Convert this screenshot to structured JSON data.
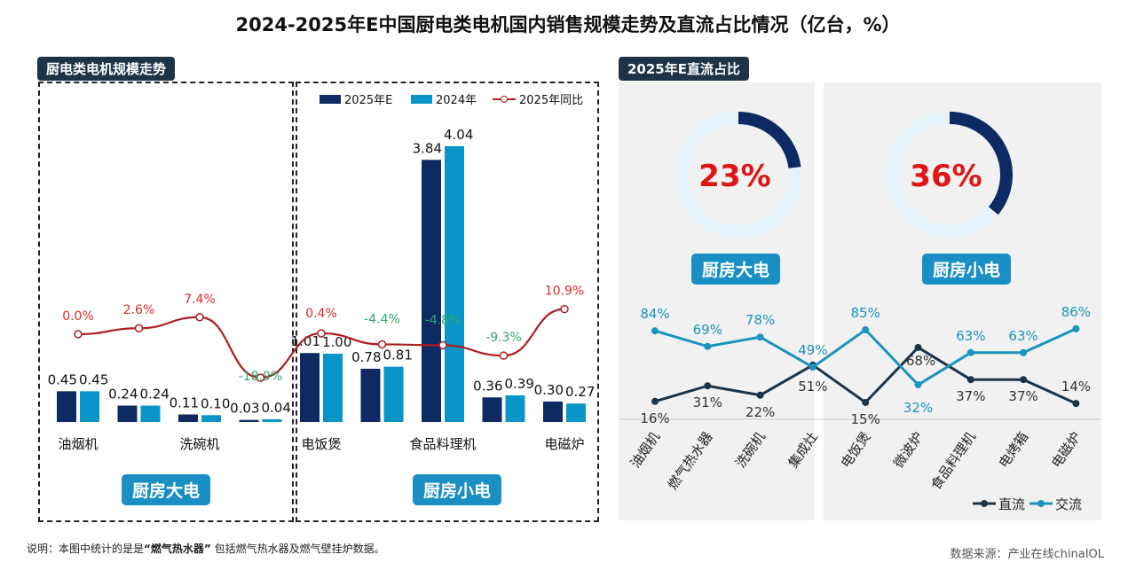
{
  "title": "2024-2025年E中国厨电类电机国内销售规模走势及直流占比情况（亿台，%）",
  "left_tag": "厨电类电机规模走势",
  "right_tag": "2025年E直流占比",
  "group_labels": [
    "厨房大电",
    "厨房小电"
  ],
  "note": {
    "prefix": "说明：本图中统计的是是",
    "bold": "“燃气热水器”",
    "suffix": " 包括燃气热水器及燃气壁挂炉数据。"
  },
  "source": "数据来源：产业在线chinaIOL",
  "colors": {
    "y2025": "#0d2a63",
    "y2024": "#0a95c8",
    "yoy": "#b01c1c",
    "dc": "#1d3448",
    "ac": "#1a94bd",
    "neg": "#2ea86b",
    "pos": "#e02828"
  },
  "chart_data": [
    {
      "type": "bar",
      "title": "厨电类电机规模走势",
      "categories": [
        "油烟机",
        "燃气热水器",
        "洗碗机",
        "集成灶",
        "电饭煲",
        "微波炉",
        "食品料理机",
        "电烤箱",
        "电磁炉"
      ],
      "visible_tick_labels": [
        "油烟机",
        "洗碗机",
        "电饭煲",
        "食品料理机",
        "电磁炉"
      ],
      "series": [
        {
          "name": "2025年E",
          "values": [
            0.45,
            0.24,
            0.11,
            0.03,
            1.01,
            0.78,
            3.84,
            0.36,
            0.3
          ]
        },
        {
          "name": "2024年",
          "values": [
            0.45,
            0.24,
            0.1,
            0.04,
            1.0,
            0.81,
            4.04,
            0.39,
            0.27
          ]
        },
        {
          "name": "2025年同比",
          "type": "line",
          "values": [
            0.0,
            2.6,
            7.4,
            -18.9,
            0.4,
            -4.4,
            -4.8,
            -9.3,
            10.9
          ],
          "labels": [
            "0.0%",
            "2.6%",
            "7.4%",
            "-18.9%",
            "0.4%",
            "-4.4%",
            "-4.8%",
            "-9.3%",
            "10.9%"
          ]
        }
      ],
      "legend": "top",
      "grid": false
    },
    {
      "type": "pie",
      "title": "2025年E直流占比",
      "items": [
        {
          "name": "厨房大电",
          "value": 23,
          "label": "23%"
        },
        {
          "name": "厨房小电",
          "value": 36,
          "label": "36%"
        }
      ]
    },
    {
      "type": "line",
      "categories": [
        "油烟机",
        "燃气热水器",
        "洗碗机",
        "集成灶",
        "电饭煲",
        "微波炉",
        "食品料理机",
        "电烤箱",
        "电磁炉"
      ],
      "series": [
        {
          "name": "直流",
          "values": [
            16,
            31,
            22,
            51,
            15,
            68,
            37,
            37,
            14
          ]
        },
        {
          "name": "交流",
          "values": [
            84,
            69,
            78,
            49,
            85,
            32,
            63,
            63,
            86
          ]
        }
      ],
      "legend": "bottom-right",
      "grid": false
    }
  ]
}
